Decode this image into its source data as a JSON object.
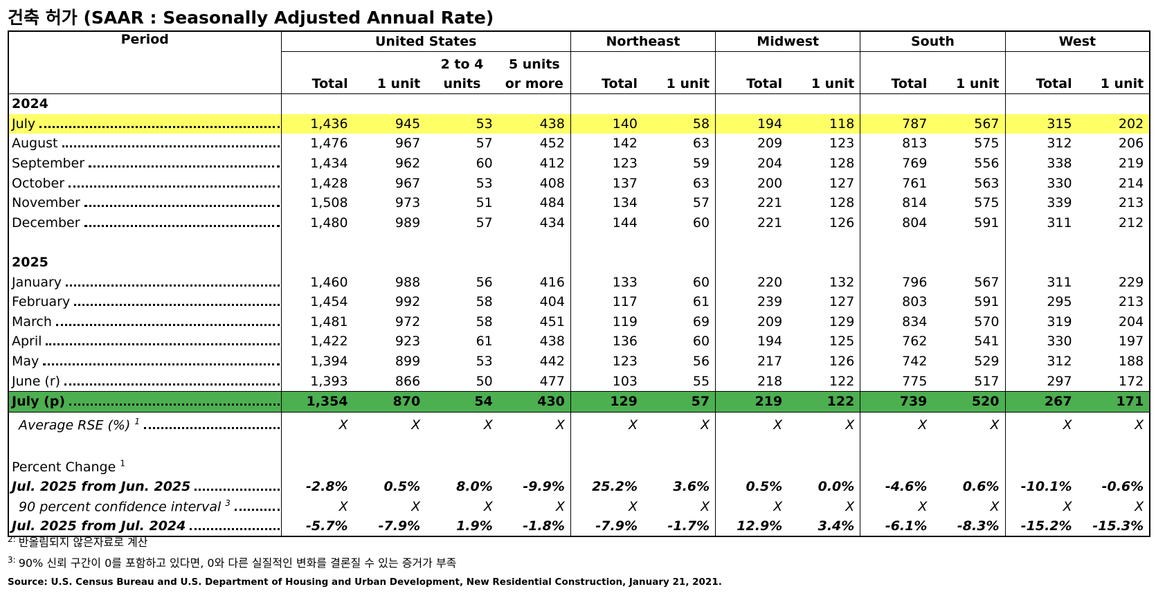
{
  "header": {
    "title": "건축 허가",
    "subtitle": "(SAAR : Seasonally Adjusted Annual Rate)"
  },
  "table": {
    "period_header": "Period",
    "groups": [
      {
        "name": "United States",
        "columns": [
          [
            "Total"
          ],
          [
            "1 unit"
          ],
          [
            "2 to 4",
            "units"
          ],
          [
            "5 units",
            "or more"
          ]
        ]
      },
      {
        "name": "Northeast",
        "columns": [
          [
            "Total"
          ],
          [
            "1 unit"
          ]
        ]
      },
      {
        "name": "Midwest",
        "columns": [
          [
            "Total"
          ],
          [
            "1 unit"
          ]
        ]
      },
      {
        "name": "South",
        "columns": [
          [
            "Total"
          ],
          [
            "1 unit"
          ]
        ]
      },
      {
        "name": "West",
        "columns": [
          [
            "Total"
          ],
          [
            "1 unit"
          ]
        ]
      }
    ],
    "sections": [
      {
        "year": "2024",
        "rows": [
          {
            "label": "July",
            "highlight": "#ffff66",
            "values": [
              "1,436",
              "945",
              "53",
              "438",
              "140",
              "58",
              "194",
              "118",
              "787",
              "567",
              "315",
              "202"
            ]
          },
          {
            "label": "August",
            "values": [
              "1,476",
              "967",
              "57",
              "452",
              "142",
              "63",
              "209",
              "123",
              "813",
              "575",
              "312",
              "206"
            ]
          },
          {
            "label": "September",
            "values": [
              "1,434",
              "962",
              "60",
              "412",
              "123",
              "59",
              "204",
              "128",
              "769",
              "556",
              "338",
              "219"
            ]
          },
          {
            "label": "October",
            "values": [
              "1,428",
              "967",
              "53",
              "408",
              "137",
              "63",
              "200",
              "127",
              "761",
              "563",
              "330",
              "214"
            ]
          },
          {
            "label": "November",
            "values": [
              "1,508",
              "973",
              "51",
              "484",
              "134",
              "57",
              "221",
              "128",
              "814",
              "575",
              "339",
              "213"
            ]
          },
          {
            "label": "December",
            "values": [
              "1,480",
              "989",
              "57",
              "434",
              "144",
              "60",
              "221",
              "126",
              "804",
              "591",
              "311",
              "212"
            ]
          }
        ]
      },
      {
        "year": "2025",
        "rows": [
          {
            "label": "January",
            "values": [
              "1,460",
              "988",
              "56",
              "416",
              "133",
              "60",
              "220",
              "132",
              "796",
              "567",
              "311",
              "229"
            ]
          },
          {
            "label": "February",
            "values": [
              "1,454",
              "992",
              "58",
              "404",
              "117",
              "61",
              "239",
              "127",
              "803",
              "591",
              "295",
              "213"
            ]
          },
          {
            "label": "March",
            "values": [
              "1,481",
              "972",
              "58",
              "451",
              "119",
              "69",
              "209",
              "129",
              "834",
              "570",
              "319",
              "204"
            ]
          },
          {
            "label": "April",
            "values": [
              "1,422",
              "923",
              "61",
              "438",
              "136",
              "60",
              "194",
              "125",
              "762",
              "541",
              "330",
              "197"
            ]
          },
          {
            "label": "May",
            "values": [
              "1,394",
              "899",
              "53",
              "442",
              "123",
              "56",
              "217",
              "126",
              "742",
              "529",
              "312",
              "188"
            ]
          },
          {
            "label": "June (r)",
            "values": [
              "1,393",
              "866",
              "50",
              "477",
              "103",
              "55",
              "218",
              "122",
              "775",
              "517",
              "297",
              "172"
            ]
          },
          {
            "label": "July (p)",
            "highlight": "#4caf50",
            "values": [
              "1,354",
              "870",
              "54",
              "430",
              "129",
              "57",
              "219",
              "122",
              "739",
              "520",
              "267",
              "171"
            ]
          }
        ]
      }
    ],
    "rse": {
      "label": "Average RSE (%)",
      "note": "1",
      "values": [
        "X",
        "X",
        "X",
        "X",
        "X",
        "X",
        "X",
        "X",
        "X",
        "X",
        "X",
        "X"
      ]
    },
    "percent_change": {
      "label": "Percent Change",
      "note": "1",
      "rows": [
        {
          "label": "Jul. 2025 from Jun. 2025",
          "values": [
            "-2.8%",
            "0.5%",
            "8.0%",
            "-9.9%",
            "25.2%",
            "3.6%",
            "0.5%",
            "0.0%",
            "-4.6%",
            "0.6%",
            "-10.1%",
            "-0.6%"
          ]
        },
        {
          "label": "90 percent confidence interval",
          "note": "3",
          "values": [
            "X",
            "X",
            "X",
            "X",
            "X",
            "X",
            "X",
            "X",
            "X",
            "X",
            "X",
            "X"
          ]
        },
        {
          "label": "Jul. 2025 from Jul. 2024",
          "values": [
            "-5.7%",
            "-7.9%",
            "1.9%",
            "-1.8%",
            "-7.9%",
            "-1.7%",
            "12.9%",
            "3.4%",
            "-6.1%",
            "-8.3%",
            "-15.2%",
            "-15.3%"
          ]
        }
      ]
    }
  },
  "footnotes": [
    {
      "mark": "2:",
      "text": "반올림되지 않은자료로 계산"
    },
    {
      "mark": "3:",
      "text": "90% 신뢰 구간이 0를 포함하고 있다면, 0와 다른 실질적인 변화를 결론질 수 있는 증거가 부족"
    }
  ],
  "source": "Source: U.S. Census Bureau and U.S. Department of Housing and Urban Development, New Residential Construction, January 21, 2021."
}
